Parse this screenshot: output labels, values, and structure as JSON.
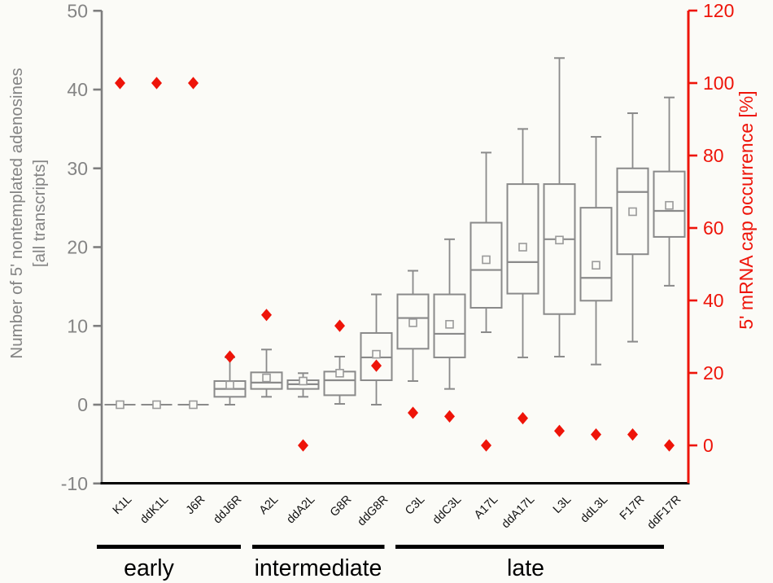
{
  "chart_data": {
    "type": "box",
    "title": "",
    "background": "#fbfbf7",
    "left_axis": {
      "label_line1": "Number of 5' nontemplated adenosines",
      "label_line2": "[all transcripts]",
      "min": -10,
      "max": 50,
      "ticks": [
        50,
        40,
        30,
        20,
        10,
        0,
        -10
      ],
      "color": "#848484"
    },
    "right_axis": {
      "label": "5' mRNA cap occurrence [%]",
      "min": 0,
      "max": 120,
      "ticks": [
        120,
        100,
        80,
        60,
        40,
        20,
        0
      ],
      "color": "#ee1409"
    },
    "categories": [
      "K1L",
      "ddK1L",
      "J6R",
      "ddJ6R",
      "A2L",
      "ddA2L",
      "G8R",
      "ddG8R",
      "C3L",
      "ddC3L",
      "A17L",
      "ddA17L",
      "L3L",
      "ddL3L",
      "F17R",
      "ddF17R"
    ],
    "groups": [
      {
        "label": "early",
        "categories": [
          "K1L",
          "ddK1L",
          "J6R",
          "ddJ6R"
        ]
      },
      {
        "label": "intermediate",
        "categories": [
          "A2L",
          "ddA2L",
          "G8R",
          "ddG8R"
        ]
      },
      {
        "label": "late",
        "categories": [
          "C3L",
          "ddC3L",
          "A17L",
          "ddA17L",
          "L3L",
          "ddL3L",
          "F17R",
          "ddF17R"
        ]
      }
    ],
    "series": [
      {
        "name": "Number of 5' nontemplated adenosines (box plots, left axis)",
        "type": "box",
        "axis": "left",
        "values": [
          {
            "category": "K1L",
            "low": 0,
            "q1": 0,
            "median": 0,
            "q3": 0,
            "high": 0,
            "mean": 0
          },
          {
            "category": "ddK1L",
            "low": 0,
            "q1": 0,
            "median": 0,
            "q3": 0,
            "high": 0,
            "mean": 0
          },
          {
            "category": "J6R",
            "low": 0,
            "q1": 0,
            "median": 0,
            "q3": 0,
            "high": 0,
            "mean": 0
          },
          {
            "category": "ddJ6R",
            "low": 0,
            "q1": 1,
            "median": 2,
            "q3": 3,
            "high": 6,
            "mean": 2.5
          },
          {
            "category": "A2L",
            "low": 1,
            "q1": 2,
            "median": 2.8,
            "q3": 4.1,
            "high": 7,
            "mean": 3.4
          },
          {
            "category": "ddA2L",
            "low": 1,
            "q1": 2,
            "median": 2.6,
            "q3": 3.1,
            "high": 4,
            "mean": 3
          },
          {
            "category": "G8R",
            "low": 0.1,
            "q1": 1.2,
            "median": 3.1,
            "q3": 4.2,
            "high": 6.1,
            "mean": 4
          },
          {
            "category": "ddG8R",
            "low": 0,
            "q1": 3.1,
            "median": 6,
            "q3": 9.1,
            "high": 14,
            "mean": 6.4
          },
          {
            "category": "C3L",
            "low": 3,
            "q1": 7.1,
            "median": 11,
            "q3": 14,
            "high": 17,
            "mean": 10.4
          },
          {
            "category": "ddC3L",
            "low": 2,
            "q1": 6,
            "median": 9,
            "q3": 14,
            "high": 21,
            "mean": 10.2
          },
          {
            "category": "A17L",
            "low": 9.2,
            "q1": 12.3,
            "median": 17.1,
            "q3": 23.1,
            "high": 32,
            "mean": 18.4
          },
          {
            "category": "ddA17L",
            "low": 6,
            "q1": 14.1,
            "median": 18.1,
            "q3": 28,
            "high": 35,
            "mean": 20
          },
          {
            "category": "L3L",
            "low": 6.1,
            "q1": 11.5,
            "median": 21,
            "q3": 28,
            "high": 44,
            "mean": 20.9
          },
          {
            "category": "ddL3L",
            "low": 5.1,
            "q1": 13.2,
            "median": 16.1,
            "q3": 25,
            "high": 34,
            "mean": 17.7
          },
          {
            "category": "F17R",
            "low": 8,
            "q1": 19.1,
            "median": 27,
            "q3": 30,
            "high": 37,
            "mean": 24.5
          },
          {
            "category": "ddF17R",
            "low": 15.1,
            "q1": 21.3,
            "median": 24.6,
            "q3": 29.6,
            "high": 39,
            "mean": 25.3
          }
        ]
      },
      {
        "name": "5' mRNA cap occurrence [%] (red diamonds, right axis)",
        "type": "scatter-diamond",
        "axis": "right",
        "values": [
          100,
          100,
          100,
          24.5,
          36,
          0,
          33,
          22,
          9,
          8,
          0,
          7.5,
          4,
          3,
          3,
          0
        ]
      }
    ],
    "layout_hints": {
      "legend": "none",
      "grid": "off",
      "box_color": "#8a8a8a",
      "marker_color": "#ee1409",
      "axis_black": "#000000"
    }
  }
}
